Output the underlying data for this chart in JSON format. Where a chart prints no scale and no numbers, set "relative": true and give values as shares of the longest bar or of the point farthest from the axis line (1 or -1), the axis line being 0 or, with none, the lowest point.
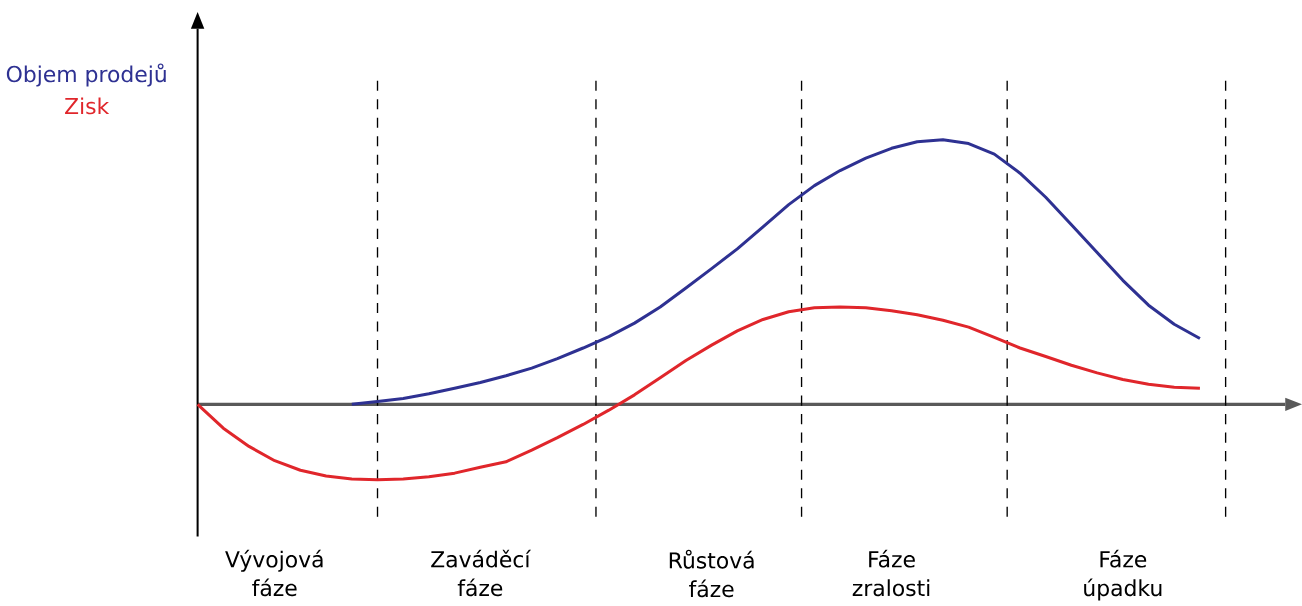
{
  "chart_data": {
    "type": "line",
    "relative": true,
    "categories": [
      null,
      null,
      null,
      "Vývojová fáze",
      null,
      null,
      null,
      null,
      null,
      null,
      null,
      "Zaváděcí fáze",
      null,
      null,
      null,
      null,
      null,
      null,
      null,
      null,
      "Růstová fáze",
      null,
      null,
      null,
      null,
      null,
      null,
      "Fáze zralosti",
      null,
      null,
      null,
      null,
      null,
      null,
      null,
      null,
      "Fáze úpadku",
      null,
      null,
      null,
      null
    ],
    "series": [
      {
        "name": "Objem prodejů",
        "color": "#2e3192",
        "values": [
          null,
          null,
          null,
          null,
          null,
          null,
          0,
          0.011,
          0.022,
          0.04,
          0.061,
          0.083,
          0.108,
          0.137,
          0.173,
          0.213,
          0.256,
          0.307,
          0.368,
          0.44,
          0.513,
          0.588,
          0.671,
          0.755,
          0.827,
          0.884,
          0.931,
          0.968,
          0.993,
          1.0,
          0.986,
          0.946,
          0.874,
          0.783,
          0.679,
          0.574,
          0.469,
          0.375,
          0.303,
          0.249,
          null
        ]
      },
      {
        "name": "Zisk",
        "color": "#e0262b",
        "values": [
          0,
          -0.09,
          -0.159,
          -0.213,
          -0.249,
          -0.271,
          -0.282,
          -0.285,
          -0.282,
          -0.274,
          -0.26,
          -0.238,
          -0.217,
          -0.173,
          -0.126,
          -0.076,
          -0.022,
          0.036,
          0.101,
          0.166,
          0.224,
          0.278,
          0.321,
          0.35,
          0.365,
          0.368,
          0.365,
          0.354,
          0.339,
          0.318,
          0.292,
          0.253,
          0.213,
          0.181,
          0.148,
          0.119,
          0.094,
          0.076,
          0.065,
          0.061,
          null
        ]
      }
    ]
  }
}
